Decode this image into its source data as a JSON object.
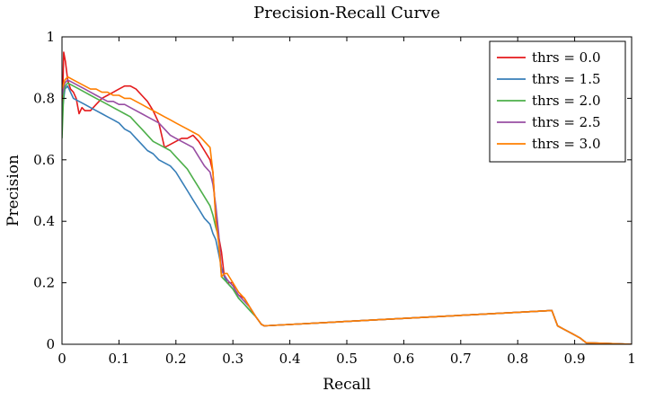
{
  "chart_data": {
    "type": "line",
    "title": "Precision-Recall Curve",
    "xlabel": "Recall",
    "ylabel": "Precision",
    "xlim": [
      0,
      1
    ],
    "ylim": [
      0,
      1
    ],
    "xticks": [
      "0",
      "0.1",
      "0.2",
      "0.3",
      "0.4",
      "0.5",
      "0.6",
      "0.7",
      "0.8",
      "0.9",
      "1"
    ],
    "yticks": [
      "0",
      "0.2",
      "0.4",
      "0.6",
      "0.8",
      "1"
    ],
    "grid": false,
    "legend_position": "top-right",
    "series": [
      {
        "name": "thrs = 0.0",
        "color": "#e41a1c",
        "points": [
          [
            0,
            0.7
          ],
          [
            0.003,
            0.95
          ],
          [
            0.006,
            0.92
          ],
          [
            0.01,
            0.86
          ],
          [
            0.015,
            0.83
          ],
          [
            0.02,
            0.82
          ],
          [
            0.025,
            0.8
          ],
          [
            0.03,
            0.75
          ],
          [
            0.035,
            0.77
          ],
          [
            0.04,
            0.76
          ],
          [
            0.05,
            0.76
          ],
          [
            0.06,
            0.78
          ],
          [
            0.07,
            0.8
          ],
          [
            0.08,
            0.81
          ],
          [
            0.09,
            0.82
          ],
          [
            0.1,
            0.83
          ],
          [
            0.11,
            0.84
          ],
          [
            0.12,
            0.84
          ],
          [
            0.13,
            0.83
          ],
          [
            0.14,
            0.81
          ],
          [
            0.15,
            0.79
          ],
          [
            0.16,
            0.76
          ],
          [
            0.17,
            0.72
          ],
          [
            0.18,
            0.64
          ],
          [
            0.19,
            0.65
          ],
          [
            0.2,
            0.66
          ],
          [
            0.21,
            0.67
          ],
          [
            0.22,
            0.67
          ],
          [
            0.23,
            0.68
          ],
          [
            0.24,
            0.66
          ],
          [
            0.25,
            0.63
          ],
          [
            0.26,
            0.6
          ],
          [
            0.265,
            0.56
          ],
          [
            0.27,
            0.41
          ],
          [
            0.275,
            0.35
          ],
          [
            0.28,
            0.3
          ],
          [
            0.285,
            0.22
          ],
          [
            0.29,
            0.2
          ],
          [
            0.3,
            0.2
          ],
          [
            0.305,
            0.17
          ],
          [
            0.31,
            0.16
          ],
          [
            0.32,
            0.15
          ],
          [
            0.33,
            0.12
          ],
          [
            0.34,
            0.09
          ],
          [
            0.35,
            0.065
          ],
          [
            0.355,
            0.06
          ],
          [
            0.86,
            0.11
          ],
          [
            0.87,
            0.06
          ],
          [
            0.88,
            0.05
          ],
          [
            0.89,
            0.04
          ],
          [
            0.9,
            0.03
          ],
          [
            0.91,
            0.02
          ],
          [
            0.92,
            0.005
          ],
          [
            1.0,
            0.0
          ]
        ]
      },
      {
        "name": "thrs = 1.5",
        "color": "#377eb8",
        "points": [
          [
            0,
            0.75
          ],
          [
            0.005,
            0.83
          ],
          [
            0.01,
            0.84
          ],
          [
            0.015,
            0.82
          ],
          [
            0.02,
            0.8
          ],
          [
            0.03,
            0.79
          ],
          [
            0.04,
            0.78
          ],
          [
            0.05,
            0.77
          ],
          [
            0.06,
            0.76
          ],
          [
            0.07,
            0.75
          ],
          [
            0.08,
            0.74
          ],
          [
            0.09,
            0.73
          ],
          [
            0.1,
            0.72
          ],
          [
            0.11,
            0.7
          ],
          [
            0.12,
            0.69
          ],
          [
            0.13,
            0.67
          ],
          [
            0.14,
            0.65
          ],
          [
            0.15,
            0.63
          ],
          [
            0.16,
            0.62
          ],
          [
            0.17,
            0.6
          ],
          [
            0.18,
            0.59
          ],
          [
            0.19,
            0.58
          ],
          [
            0.2,
            0.56
          ],
          [
            0.21,
            0.53
          ],
          [
            0.22,
            0.5
          ],
          [
            0.23,
            0.47
          ],
          [
            0.24,
            0.44
          ],
          [
            0.25,
            0.41
          ],
          [
            0.26,
            0.39
          ],
          [
            0.265,
            0.36
          ],
          [
            0.27,
            0.34
          ],
          [
            0.28,
            0.25
          ],
          [
            0.285,
            0.22
          ],
          [
            0.29,
            0.2
          ],
          [
            0.3,
            0.18
          ],
          [
            0.31,
            0.15
          ],
          [
            0.32,
            0.13
          ],
          [
            0.33,
            0.11
          ],
          [
            0.34,
            0.09
          ],
          [
            0.35,
            0.065
          ],
          [
            0.355,
            0.06
          ],
          [
            0.86,
            0.11
          ],
          [
            0.87,
            0.06
          ],
          [
            0.88,
            0.05
          ],
          [
            0.89,
            0.04
          ],
          [
            0.9,
            0.03
          ],
          [
            0.91,
            0.02
          ],
          [
            0.92,
            0.005
          ],
          [
            1.0,
            0.0
          ]
        ]
      },
      {
        "name": "thrs = 2.0",
        "color": "#4daf4a",
        "points": [
          [
            0,
            0.67
          ],
          [
            0.003,
            0.82
          ],
          [
            0.006,
            0.84
          ],
          [
            0.01,
            0.85
          ],
          [
            0.02,
            0.84
          ],
          [
            0.03,
            0.83
          ],
          [
            0.04,
            0.82
          ],
          [
            0.05,
            0.81
          ],
          [
            0.06,
            0.8
          ],
          [
            0.07,
            0.79
          ],
          [
            0.08,
            0.78
          ],
          [
            0.09,
            0.77
          ],
          [
            0.1,
            0.76
          ],
          [
            0.11,
            0.75
          ],
          [
            0.12,
            0.74
          ],
          [
            0.13,
            0.72
          ],
          [
            0.14,
            0.7
          ],
          [
            0.15,
            0.68
          ],
          [
            0.16,
            0.66
          ],
          [
            0.17,
            0.65
          ],
          [
            0.18,
            0.64
          ],
          [
            0.19,
            0.63
          ],
          [
            0.2,
            0.61
          ],
          [
            0.21,
            0.59
          ],
          [
            0.22,
            0.57
          ],
          [
            0.23,
            0.54
          ],
          [
            0.24,
            0.51
          ],
          [
            0.25,
            0.48
          ],
          [
            0.26,
            0.45
          ],
          [
            0.265,
            0.42
          ],
          [
            0.27,
            0.38
          ],
          [
            0.275,
            0.35
          ],
          [
            0.28,
            0.22
          ],
          [
            0.29,
            0.2
          ],
          [
            0.3,
            0.18
          ],
          [
            0.31,
            0.15
          ],
          [
            0.32,
            0.13
          ],
          [
            0.33,
            0.11
          ],
          [
            0.34,
            0.09
          ],
          [
            0.35,
            0.065
          ],
          [
            0.355,
            0.06
          ],
          [
            0.86,
            0.11
          ],
          [
            0.87,
            0.06
          ],
          [
            0.88,
            0.05
          ],
          [
            0.89,
            0.04
          ],
          [
            0.9,
            0.03
          ],
          [
            0.91,
            0.02
          ],
          [
            0.92,
            0.005
          ],
          [
            1.0,
            0.0
          ]
        ]
      },
      {
        "name": "thrs = 2.5",
        "color": "#984ea3",
        "points": [
          [
            0,
            0.81
          ],
          [
            0.005,
            0.85
          ],
          [
            0.01,
            0.86
          ],
          [
            0.02,
            0.85
          ],
          [
            0.03,
            0.84
          ],
          [
            0.04,
            0.83
          ],
          [
            0.05,
            0.82
          ],
          [
            0.06,
            0.81
          ],
          [
            0.07,
            0.8
          ],
          [
            0.08,
            0.79
          ],
          [
            0.09,
            0.79
          ],
          [
            0.1,
            0.78
          ],
          [
            0.11,
            0.78
          ],
          [
            0.12,
            0.77
          ],
          [
            0.13,
            0.76
          ],
          [
            0.14,
            0.75
          ],
          [
            0.15,
            0.74
          ],
          [
            0.16,
            0.73
          ],
          [
            0.17,
            0.72
          ],
          [
            0.18,
            0.7
          ],
          [
            0.19,
            0.68
          ],
          [
            0.2,
            0.67
          ],
          [
            0.21,
            0.66
          ],
          [
            0.22,
            0.65
          ],
          [
            0.23,
            0.64
          ],
          [
            0.24,
            0.61
          ],
          [
            0.25,
            0.58
          ],
          [
            0.26,
            0.56
          ],
          [
            0.265,
            0.52
          ],
          [
            0.27,
            0.45
          ],
          [
            0.275,
            0.36
          ],
          [
            0.28,
            0.24
          ],
          [
            0.29,
            0.21
          ],
          [
            0.3,
            0.19
          ],
          [
            0.31,
            0.16
          ],
          [
            0.32,
            0.14
          ],
          [
            0.33,
            0.12
          ],
          [
            0.34,
            0.09
          ],
          [
            0.35,
            0.065
          ],
          [
            0.355,
            0.06
          ],
          [
            0.86,
            0.11
          ],
          [
            0.87,
            0.06
          ],
          [
            0.88,
            0.05
          ],
          [
            0.89,
            0.04
          ],
          [
            0.9,
            0.03
          ],
          [
            0.91,
            0.02
          ],
          [
            0.92,
            0.005
          ],
          [
            1.0,
            0.0
          ]
        ]
      },
      {
        "name": "thrs = 3.0",
        "color": "#ff7f00",
        "points": [
          [
            0,
            0.83
          ],
          [
            0.005,
            0.86
          ],
          [
            0.01,
            0.87
          ],
          [
            0.02,
            0.86
          ],
          [
            0.03,
            0.85
          ],
          [
            0.04,
            0.84
          ],
          [
            0.05,
            0.83
          ],
          [
            0.06,
            0.83
          ],
          [
            0.07,
            0.82
          ],
          [
            0.08,
            0.82
          ],
          [
            0.09,
            0.81
          ],
          [
            0.1,
            0.81
          ],
          [
            0.11,
            0.8
          ],
          [
            0.12,
            0.8
          ],
          [
            0.13,
            0.79
          ],
          [
            0.14,
            0.78
          ],
          [
            0.15,
            0.77
          ],
          [
            0.16,
            0.76
          ],
          [
            0.17,
            0.75
          ],
          [
            0.18,
            0.74
          ],
          [
            0.19,
            0.73
          ],
          [
            0.2,
            0.72
          ],
          [
            0.21,
            0.71
          ],
          [
            0.22,
            0.7
          ],
          [
            0.23,
            0.69
          ],
          [
            0.24,
            0.68
          ],
          [
            0.25,
            0.66
          ],
          [
            0.26,
            0.64
          ],
          [
            0.265,
            0.56
          ],
          [
            0.27,
            0.4
          ],
          [
            0.275,
            0.33
          ],
          [
            0.28,
            0.22
          ],
          [
            0.285,
            0.23
          ],
          [
            0.29,
            0.23
          ],
          [
            0.3,
            0.2
          ],
          [
            0.31,
            0.17
          ],
          [
            0.32,
            0.15
          ],
          [
            0.33,
            0.12
          ],
          [
            0.34,
            0.09
          ],
          [
            0.35,
            0.065
          ],
          [
            0.355,
            0.06
          ],
          [
            0.86,
            0.11
          ],
          [
            0.87,
            0.06
          ],
          [
            0.88,
            0.05
          ],
          [
            0.89,
            0.04
          ],
          [
            0.9,
            0.03
          ],
          [
            0.91,
            0.02
          ],
          [
            0.92,
            0.005
          ],
          [
            1.0,
            0.0
          ]
        ]
      }
    ]
  }
}
